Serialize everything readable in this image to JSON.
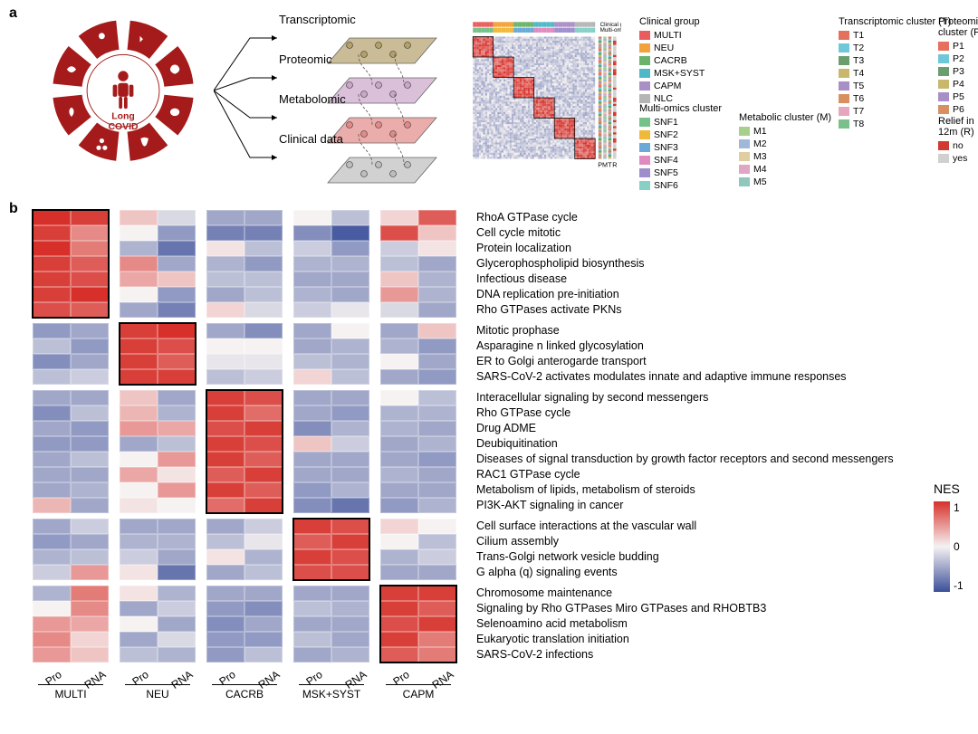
{
  "panels": {
    "a": "a",
    "b": "b"
  },
  "schematic": {
    "center_label": "Long\nCOVID"
  },
  "omics_layers": [
    {
      "label": "Transcriptomic",
      "color": "#b3a06a"
    },
    {
      "label": "Proteomic",
      "color": "#caa6c9"
    },
    {
      "label": "Metabolomic",
      "color": "#e28a89"
    },
    {
      "label": "Clinical data",
      "color": "#bdbdbd"
    }
  ],
  "cluster_annot_cols": [
    "P",
    "M",
    "T",
    "R"
  ],
  "legends": {
    "clinical_group": {
      "title": "Clinical group",
      "items": [
        {
          "label": "MULTI",
          "color": "#e95d5d"
        },
        {
          "label": "NEU",
          "color": "#f3a23a"
        },
        {
          "label": "CACRB",
          "color": "#6bb36b"
        },
        {
          "label": "MSK+SYST",
          "color": "#4fb8c8"
        },
        {
          "label": "CAPM",
          "color": "#a98fc6"
        },
        {
          "label": "NLC",
          "color": "#b5b5b5"
        }
      ]
    },
    "multiomics_cluster": {
      "title": "Multi-omics\ncluster",
      "items": [
        {
          "label": "SNF1",
          "color": "#76c08a"
        },
        {
          "label": "SNF2",
          "color": "#f0b93a"
        },
        {
          "label": "SNF3",
          "color": "#6aa9d8"
        },
        {
          "label": "SNF4",
          "color": "#e08bbf"
        },
        {
          "label": "SNF5",
          "color": "#9f8ece"
        },
        {
          "label": "SNF6",
          "color": "#86d0c6"
        }
      ]
    },
    "metabolic_cluster": {
      "title": "Metabolic\ncluster (M)",
      "items": [
        {
          "label": "M1",
          "color": "#a7d08e"
        },
        {
          "label": "M2",
          "color": "#9fb7d8"
        },
        {
          "label": "M3",
          "color": "#e0cda0"
        },
        {
          "label": "M4",
          "color": "#e0a6c3"
        },
        {
          "label": "M5",
          "color": "#8fc6bd"
        }
      ]
    },
    "transcriptomic_cluster": {
      "title": "Transcriptomic\ncluster (T)",
      "items": [
        {
          "label": "T1",
          "color": "#e6705e"
        },
        {
          "label": "T2",
          "color": "#6ec8d8"
        },
        {
          "label": "T3",
          "color": "#6a9e6e"
        },
        {
          "label": "T4",
          "color": "#c9b86c"
        },
        {
          "label": "T5",
          "color": "#a88fc6"
        },
        {
          "label": "T6",
          "color": "#d99060"
        },
        {
          "label": "T7",
          "color": "#e6a6bd"
        },
        {
          "label": "T8",
          "color": "#7bbf8a"
        }
      ]
    },
    "proteomic_cluster": {
      "title": "Proteomic\ncluster (P)",
      "items": [
        {
          "label": "P1",
          "color": "#e6705e"
        },
        {
          "label": "P2",
          "color": "#6ec8d8"
        },
        {
          "label": "P3",
          "color": "#6a9e6e"
        },
        {
          "label": "P4",
          "color": "#c9b86c"
        },
        {
          "label": "P5",
          "color": "#a88fc6"
        },
        {
          "label": "P6",
          "color": "#d99060"
        }
      ]
    },
    "relief": {
      "title": "Relief in\n12m (R)",
      "items": [
        {
          "label": "no",
          "color": "#d13a30"
        },
        {
          "label": "yes",
          "color": "#d0d0d0"
        }
      ]
    }
  },
  "nes_scale": {
    "title": "NES",
    "ticks": [
      "1",
      "0",
      "-1"
    ],
    "high_color": "#d7302a",
    "mid_color": "#f6f2f2",
    "low_color": "#3b4f9a"
  },
  "heatmap_b": {
    "col_groups": [
      "MULTI",
      "NEU",
      "CACRB",
      "MSK+SYST",
      "CAPM"
    ],
    "sub_cols": [
      "Pro",
      "RNA"
    ],
    "blocks": [
      {
        "highlight_col": 0,
        "rows": [
          "RhoA GTPase cycle",
          "Cell cycle mitotic",
          "Protein localization",
          "Glycerophospholipid biosynthesis",
          "Infectious disease",
          "DNA replication pre-initiation",
          "Rho GTPases activate PKNs"
        ],
        "values": [
          [
            [
              1.3,
              1.2
            ],
            [
              0.3,
              -0.2
            ],
            [
              -0.6,
              -0.6
            ],
            [
              0.0,
              -0.4
            ],
            [
              0.2,
              1.0
            ]
          ],
          [
            [
              1.2,
              0.7
            ],
            [
              0.0,
              -0.7
            ],
            [
              -0.9,
              -0.9
            ],
            [
              -0.8,
              -1.2
            ],
            [
              1.1,
              0.3
            ]
          ],
          [
            [
              1.3,
              0.8
            ],
            [
              -0.5,
              -1.0
            ],
            [
              0.1,
              -0.4
            ],
            [
              -0.3,
              -0.7
            ],
            [
              -0.3,
              0.1
            ]
          ],
          [
            [
              1.2,
              1.0
            ],
            [
              0.7,
              -0.6
            ],
            [
              -0.5,
              -0.7
            ],
            [
              -0.5,
              -0.5
            ],
            [
              -0.4,
              -0.6
            ]
          ],
          [
            [
              1.2,
              1.1
            ],
            [
              0.5,
              0.3
            ],
            [
              -0.4,
              -0.4
            ],
            [
              -0.6,
              -0.6
            ],
            [
              0.3,
              -0.5
            ]
          ],
          [
            [
              1.2,
              1.3
            ],
            [
              0.0,
              -0.7
            ],
            [
              -0.6,
              -0.4
            ],
            [
              -0.5,
              -0.6
            ],
            [
              0.6,
              -0.5
            ]
          ],
          [
            [
              1.1,
              1.0
            ],
            [
              -0.6,
              -0.9
            ],
            [
              0.2,
              -0.2
            ],
            [
              -0.3,
              -0.1
            ],
            [
              -0.2,
              -0.6
            ]
          ]
        ]
      },
      {
        "highlight_col": 1,
        "rows": [
          "Mitotic prophase",
          "Asparagine n linked glycosylation",
          "ER to Golgi anterogarde transport",
          "SARS-CoV-2 activates modulates innate and adaptive immune responses"
        ],
        "values": [
          [
            [
              -0.7,
              -0.6
            ],
            [
              1.2,
              1.3
            ],
            [
              -0.6,
              -0.8
            ],
            [
              -0.6,
              0.0
            ],
            [
              -0.6,
              0.3
            ]
          ],
          [
            [
              -0.4,
              -0.7
            ],
            [
              1.2,
              1.1
            ],
            [
              0.0,
              0.0
            ],
            [
              -0.6,
              -0.5
            ],
            [
              -0.5,
              -0.7
            ]
          ],
          [
            [
              -0.8,
              -0.6
            ],
            [
              1.2,
              1.0
            ],
            [
              -0.1,
              -0.1
            ],
            [
              -0.4,
              -0.5
            ],
            [
              0.0,
              -0.6
            ]
          ],
          [
            [
              -0.4,
              -0.3
            ],
            [
              1.2,
              1.2
            ],
            [
              -0.4,
              -0.3
            ],
            [
              0.2,
              -0.4
            ],
            [
              -0.6,
              -0.7
            ]
          ]
        ]
      },
      {
        "highlight_col": 2,
        "rows": [
          "Interacellular signaling by second messengers",
          "Rho GTPase cycle",
          "Drug ADME",
          "Deubiquitination",
          "Diseases of signal transduction by growth factor  receptors and second messengers",
          "RAC1 GTPase cycle",
          "Metabolism of lipids, metabolism of steroids",
          "PI3K-AKT signaling in cancer"
        ],
        "values": [
          [
            [
              -0.6,
              -0.6
            ],
            [
              0.3,
              -0.6
            ],
            [
              1.2,
              1.1
            ],
            [
              -0.6,
              -0.6
            ],
            [
              0.0,
              -0.4
            ]
          ],
          [
            [
              -0.8,
              -0.4
            ],
            [
              0.4,
              -0.5
            ],
            [
              1.2,
              0.9
            ],
            [
              -0.6,
              -0.7
            ],
            [
              -0.5,
              -0.5
            ]
          ],
          [
            [
              -0.6,
              -0.7
            ],
            [
              0.6,
              0.5
            ],
            [
              1.1,
              1.2
            ],
            [
              -0.8,
              -0.5
            ],
            [
              -0.5,
              -0.6
            ]
          ],
          [
            [
              -0.7,
              -0.7
            ],
            [
              -0.6,
              -0.4
            ],
            [
              1.2,
              1.1
            ],
            [
              0.3,
              -0.3
            ],
            [
              -0.6,
              -0.5
            ]
          ],
          [
            [
              -0.6,
              -0.4
            ],
            [
              0.0,
              0.6
            ],
            [
              1.2,
              1.0
            ],
            [
              -0.6,
              -0.6
            ],
            [
              -0.6,
              -0.7
            ]
          ],
          [
            [
              -0.6,
              -0.6
            ],
            [
              0.5,
              0.1
            ],
            [
              1.0,
              1.2
            ],
            [
              -0.6,
              -0.6
            ],
            [
              -0.5,
              -0.6
            ]
          ],
          [
            [
              -0.6,
              -0.5
            ],
            [
              0.0,
              0.6
            ],
            [
              1.2,
              1.0
            ],
            [
              -0.7,
              -0.5
            ],
            [
              -0.6,
              -0.6
            ]
          ],
          [
            [
              0.4,
              -0.6
            ],
            [
              0.1,
              0.0
            ],
            [
              0.9,
              1.2
            ],
            [
              -0.8,
              -1.0
            ],
            [
              -0.7,
              -0.5
            ]
          ]
        ]
      },
      {
        "highlight_col": 3,
        "rows": [
          "Cell surface interactions at the vascular wall",
          "Cilium assembly",
          "Trans-Golgi network vesicle budding",
          "G alpha (q) signaling events"
        ],
        "values": [
          [
            [
              -0.6,
              -0.3
            ],
            [
              -0.6,
              -0.6
            ],
            [
              -0.6,
              -0.3
            ],
            [
              1.2,
              1.1
            ],
            [
              0.2,
              0.0
            ]
          ],
          [
            [
              -0.7,
              -0.6
            ],
            [
              -0.5,
              -0.5
            ],
            [
              -0.4,
              -0.1
            ],
            [
              1.0,
              1.2
            ],
            [
              0.0,
              -0.4
            ]
          ],
          [
            [
              -0.5,
              -0.4
            ],
            [
              -0.3,
              -0.6
            ],
            [
              0.1,
              -0.5
            ],
            [
              1.2,
              1.1
            ],
            [
              -0.5,
              -0.3
            ]
          ],
          [
            [
              -0.3,
              0.6
            ],
            [
              0.1,
              -1.0
            ],
            [
              -0.6,
              -0.4
            ],
            [
              1.1,
              1.1
            ],
            [
              -0.6,
              -0.6
            ]
          ]
        ]
      },
      {
        "highlight_col": 4,
        "rows": [
          "Chromosome maintenance",
          "Signaling by Rho GTPases Miro GTPases and RHOBTB3",
          "Selenoamino acid metabolism",
          "Eukaryotic translation initiation",
          "SARS-CoV-2 infections"
        ],
        "values": [
          [
            [
              -0.5,
              0.8
            ],
            [
              0.1,
              -0.5
            ],
            [
              -0.6,
              -0.6
            ],
            [
              -0.6,
              -0.6
            ],
            [
              1.2,
              1.2
            ]
          ],
          [
            [
              0.0,
              0.7
            ],
            [
              -0.6,
              -0.3
            ],
            [
              -0.7,
              -0.8
            ],
            [
              -0.4,
              -0.5
            ],
            [
              1.2,
              1.0
            ]
          ],
          [
            [
              0.6,
              0.5
            ],
            [
              0.0,
              -0.6
            ],
            [
              -0.8,
              -0.6
            ],
            [
              -0.6,
              -0.6
            ],
            [
              1.1,
              1.2
            ]
          ],
          [
            [
              0.7,
              0.2
            ],
            [
              -0.6,
              -0.2
            ],
            [
              -0.7,
              -0.7
            ],
            [
              -0.4,
              -0.6
            ],
            [
              1.2,
              0.8
            ]
          ],
          [
            [
              0.6,
              0.3
            ],
            [
              -0.4,
              -0.5
            ],
            [
              -0.7,
              -0.4
            ],
            [
              -0.6,
              -0.5
            ],
            [
              1.0,
              0.8
            ]
          ]
        ]
      }
    ]
  }
}
